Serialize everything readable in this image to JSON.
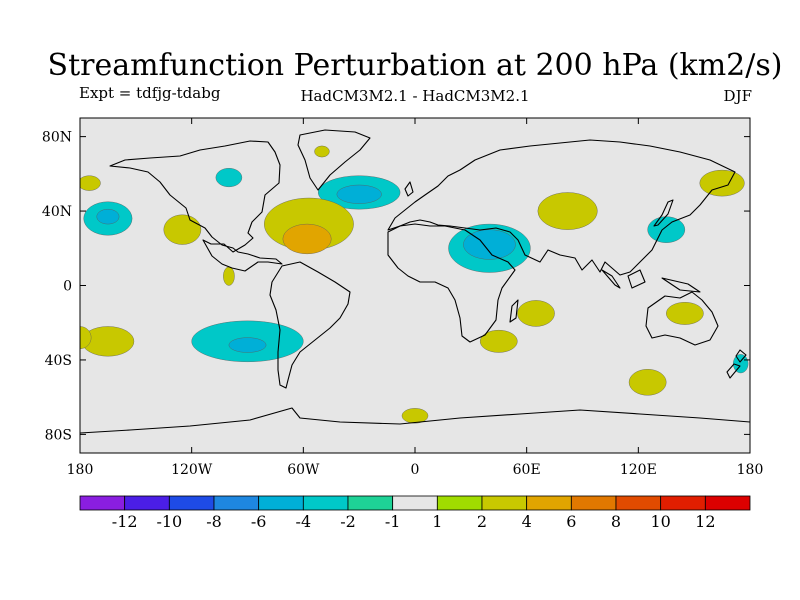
{
  "chart_data": {
    "type": "heatmap",
    "title": "Streamfunction Perturbation at 200 hPa (km2/s)",
    "left_label": "Expt = tdfjg-tdabg",
    "center_label": "HadCM3M2.1 - HadCM3M2.1",
    "right_label": "DJF",
    "projection": "cylindrical equidistant",
    "xlim": [
      -180,
      180
    ],
    "ylim": [
      -90,
      90
    ],
    "x_ticks": [
      {
        "value": -180,
        "label": "180"
      },
      {
        "value": -120,
        "label": "120W"
      },
      {
        "value": -60,
        "label": "60W"
      },
      {
        "value": 0,
        "label": "0"
      },
      {
        "value": 60,
        "label": "60E"
      },
      {
        "value": 120,
        "label": "120E"
      },
      {
        "value": 180,
        "label": "180"
      }
    ],
    "y_ticks": [
      {
        "value": 80,
        "label": "80N"
      },
      {
        "value": 40,
        "label": "40N"
      },
      {
        "value": 0,
        "label": "0"
      },
      {
        "value": -40,
        "label": "40S"
      },
      {
        "value": -80,
        "label": "80S"
      }
    ],
    "contour_levels": [
      -12,
      -10,
      -8,
      -6,
      -4,
      -2,
      -1,
      1,
      2,
      4,
      6,
      8,
      10,
      12
    ],
    "colorbar_labels": [
      "-12",
      "-10",
      "-8",
      "-6",
      "-4",
      "-2",
      "-1",
      "1",
      "2",
      "4",
      "6",
      "8",
      "10",
      "12"
    ],
    "colorbar_colors": [
      "#8a1ee0",
      "#4b1ee6",
      "#1e4be6",
      "#1e87e0",
      "#00afd7",
      "#00c8c8",
      "#1ed296",
      "#e6e6e6",
      "#a0dc00",
      "#c8c800",
      "#e1a500",
      "#e17800",
      "#e14b00",
      "#e11e00",
      "#dc0000"
    ],
    "anomalies": [
      {
        "lon": -30,
        "lat": 50,
        "rx": 22,
        "ry": 9,
        "level": -2
      },
      {
        "lon": -30,
        "lat": 49,
        "rx": 12,
        "ry": 5,
        "level": -4
      },
      {
        "lon": 40,
        "lat": 20,
        "rx": 22,
        "ry": 13,
        "level": -2
      },
      {
        "lon": 40,
        "lat": 22,
        "rx": 14,
        "ry": 8,
        "level": -4
      },
      {
        "lon": -165,
        "lat": 36,
        "rx": 13,
        "ry": 9,
        "level": -2
      },
      {
        "lon": -165,
        "lat": 37,
        "rx": 6,
        "ry": 4,
        "level": -4
      },
      {
        "lon": -90,
        "lat": -30,
        "rx": 30,
        "ry": 11,
        "level": -2
      },
      {
        "lon": -90,
        "lat": -32,
        "rx": 10,
        "ry": 4,
        "level": -4
      },
      {
        "lon": 135,
        "lat": 30,
        "rx": 10,
        "ry": 7,
        "level": -2
      },
      {
        "lon": -100,
        "lat": 58,
        "rx": 7,
        "ry": 5,
        "level": -2
      },
      {
        "lon": -57,
        "lat": 33,
        "rx": 24,
        "ry": 14,
        "level": 2
      },
      {
        "lon": -58,
        "lat": 25,
        "rx": 13,
        "ry": 8,
        "level": 4
      },
      {
        "lon": 82,
        "lat": 40,
        "rx": 16,
        "ry": 10,
        "level": 2
      },
      {
        "lon": -125,
        "lat": 30,
        "rx": 10,
        "ry": 8,
        "level": 2
      },
      {
        "lon": 165,
        "lat": 55,
        "rx": 12,
        "ry": 7,
        "level": 2
      },
      {
        "lon": -175,
        "lat": 55,
        "rx": 6,
        "ry": 4,
        "level": 2
      },
      {
        "lon": 65,
        "lat": -15,
        "rx": 10,
        "ry": 7,
        "level": 2
      },
      {
        "lon": 45,
        "lat": -30,
        "rx": 10,
        "ry": 6,
        "level": 2
      },
      {
        "lon": 125,
        "lat": -52,
        "rx": 10,
        "ry": 7,
        "level": 2
      },
      {
        "lon": 145,
        "lat": -15,
        "rx": 10,
        "ry": 6,
        "level": 2
      },
      {
        "lon": -165,
        "lat": -30,
        "rx": 14,
        "ry": 8,
        "level": 2
      },
      {
        "lon": -180,
        "lat": -28,
        "rx": 6,
        "ry": 6,
        "level": 2
      },
      {
        "lon": 0,
        "lat": -70,
        "rx": 7,
        "ry": 4,
        "level": 2
      },
      {
        "lon": -100,
        "lat": 5,
        "rx": 3,
        "ry": 5,
        "level": 2
      },
      {
        "lon": -50,
        "lat": 72,
        "rx": 4,
        "ry": 3,
        "level": 2
      },
      {
        "lon": 175,
        "lat": -42,
        "rx": 4,
        "ry": 5,
        "level": -2
      }
    ]
  }
}
